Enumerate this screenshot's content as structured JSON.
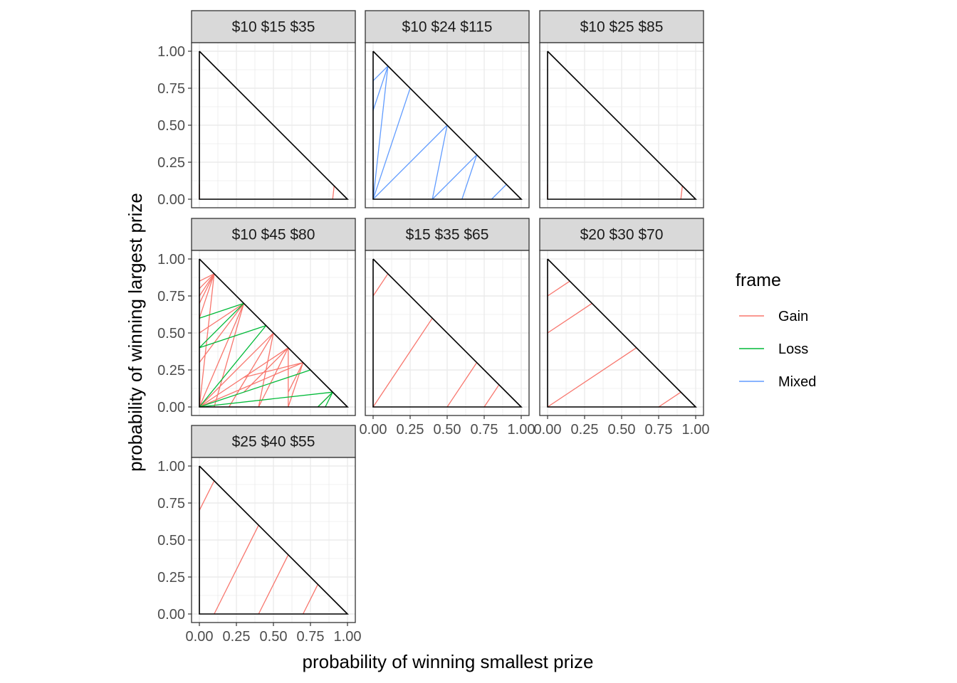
{
  "chart_data": {
    "type": "line",
    "xlabel": "probability of winning smallest prize",
    "ylabel": "probability of winning largest prize",
    "xlim": [
      0,
      1
    ],
    "ylim": [
      0,
      1
    ],
    "x_ticks": [
      "0.00",
      "0.25",
      "0.50",
      "0.75",
      "1.00"
    ],
    "y_ticks": [
      "0.00",
      "0.25",
      "0.50",
      "0.75",
      "1.00"
    ],
    "grid": true,
    "legend": {
      "title": "frame",
      "position": "right",
      "entries": [
        {
          "name": "Gain",
          "color": "#F8766D"
        },
        {
          "name": "Loss",
          "color": "#00BA38"
        },
        {
          "name": "Mixed",
          "color": "#619CFF"
        }
      ]
    },
    "triangle": [
      [
        0,
        1
      ],
      [
        0,
        0
      ],
      [
        1,
        0
      ],
      [
        0,
        1
      ]
    ],
    "panels": [
      {
        "label": "$10 $15 $35",
        "segments": [
          {
            "frame": "Gain",
            "x1": 0.0,
            "y1": 0.0,
            "x2": 0.0,
            "y2": 0.1
          },
          {
            "frame": "Gain",
            "x1": 0.9,
            "y1": 0.0,
            "x2": 0.91,
            "y2": 0.09
          }
        ]
      },
      {
        "label": "$10 $24 $115",
        "segments": [
          {
            "frame": "Mixed",
            "x1": 0.0,
            "y1": 0.6,
            "x2": 0.0,
            "y2": 0.8
          },
          {
            "frame": "Mixed",
            "x1": 0.0,
            "y1": 0.6,
            "x2": 0.1,
            "y2": 0.9
          },
          {
            "frame": "Mixed",
            "x1": 0.0,
            "y1": 0.8,
            "x2": 0.1,
            "y2": 0.9
          },
          {
            "frame": "Mixed",
            "x1": 0.0,
            "y1": 0.0,
            "x2": 0.1,
            "y2": 0.9
          },
          {
            "frame": "Mixed",
            "x1": 0.0,
            "y1": 0.0,
            "x2": 0.25,
            "y2": 0.75
          },
          {
            "frame": "Mixed",
            "x1": 0.0,
            "y1": 0.0,
            "x2": 0.5,
            "y2": 0.5
          },
          {
            "frame": "Mixed",
            "x1": 0.4,
            "y1": 0.0,
            "x2": 0.5,
            "y2": 0.5
          },
          {
            "frame": "Mixed",
            "x1": 0.4,
            "y1": 0.0,
            "x2": 0.7,
            "y2": 0.3
          },
          {
            "frame": "Mixed",
            "x1": 0.6,
            "y1": 0.0,
            "x2": 0.7,
            "y2": 0.3
          },
          {
            "frame": "Mixed",
            "x1": 0.8,
            "y1": 0.0,
            "x2": 0.9,
            "y2": 0.1
          }
        ]
      },
      {
        "label": "$10 $25 $85",
        "segments": [
          {
            "frame": "Gain",
            "x1": 0.0,
            "y1": 0.0,
            "x2": 0.0,
            "y2": 0.1
          },
          {
            "frame": "Gain",
            "x1": 0.9,
            "y1": 0.0,
            "x2": 0.91,
            "y2": 0.09
          }
        ]
      },
      {
        "label": "$10 $45 $80",
        "segments": [
          {
            "frame": "Gain",
            "x1": 0.0,
            "y1": 0.7,
            "x2": 0.1,
            "y2": 0.9
          },
          {
            "frame": "Gain",
            "x1": 0.0,
            "y1": 0.75,
            "x2": 0.1,
            "y2": 0.9
          },
          {
            "frame": "Gain",
            "x1": 0.0,
            "y1": 0.8,
            "x2": 0.1,
            "y2": 0.9
          },
          {
            "frame": "Gain",
            "x1": 0.0,
            "y1": 0.85,
            "x2": 0.1,
            "y2": 0.9
          },
          {
            "frame": "Gain",
            "x1": 0.0,
            "y1": 0.6,
            "x2": 0.1,
            "y2": 0.9
          },
          {
            "frame": "Gain",
            "x1": 0.0,
            "y1": 0.5,
            "x2": 0.3,
            "y2": 0.7
          },
          {
            "frame": "Gain",
            "x1": 0.0,
            "y1": 0.3,
            "x2": 0.3,
            "y2": 0.7
          },
          {
            "frame": "Gain",
            "x1": 0.0,
            "y1": 0.0,
            "x2": 0.1,
            "y2": 0.9
          },
          {
            "frame": "Gain",
            "x1": 0.0,
            "y1": 0.0,
            "x2": 0.3,
            "y2": 0.7
          },
          {
            "frame": "Gain",
            "x1": 0.0,
            "y1": 0.0,
            "x2": 0.5,
            "y2": 0.5
          },
          {
            "frame": "Gain",
            "x1": 0.0,
            "y1": 0.0,
            "x2": 0.6,
            "y2": 0.4
          },
          {
            "frame": "Gain",
            "x1": 0.0,
            "y1": 0.0,
            "x2": 0.7,
            "y2": 0.3
          },
          {
            "frame": "Gain",
            "x1": 0.1,
            "y1": 0.0,
            "x2": 0.3,
            "y2": 0.7
          },
          {
            "frame": "Gain",
            "x1": 0.2,
            "y1": 0.0,
            "x2": 0.5,
            "y2": 0.5
          },
          {
            "frame": "Gain",
            "x1": 0.4,
            "y1": 0.0,
            "x2": 0.6,
            "y2": 0.4
          },
          {
            "frame": "Gain",
            "x1": 0.4,
            "y1": 0.0,
            "x2": 0.5,
            "y2": 0.5
          },
          {
            "frame": "Gain",
            "x1": 0.6,
            "y1": 0.0,
            "x2": 0.7,
            "y2": 0.3
          },
          {
            "frame": "Gain",
            "x1": 0.6,
            "y1": 0.0,
            "x2": 0.6,
            "y2": 0.4
          },
          {
            "frame": "Gain",
            "x1": 0.8,
            "y1": 0.0,
            "x2": 0.9,
            "y2": 0.1
          },
          {
            "frame": "Gain",
            "x1": 0.3,
            "y1": 0.1,
            "x2": 0.6,
            "y2": 0.4
          },
          {
            "frame": "Gain",
            "x1": 0.3,
            "y1": 0.2,
            "x2": 0.7,
            "y2": 0.3
          },
          {
            "frame": "Gain",
            "x1": 0.6,
            "y1": 0.1,
            "x2": 0.7,
            "y2": 0.3
          },
          {
            "frame": "Loss",
            "x1": 0.0,
            "y1": 0.6,
            "x2": 0.3,
            "y2": 0.7
          },
          {
            "frame": "Loss",
            "x1": 0.0,
            "y1": 0.4,
            "x2": 0.3,
            "y2": 0.7
          },
          {
            "frame": "Loss",
            "x1": 0.0,
            "y1": 0.4,
            "x2": 0.45,
            "y2": 0.55
          },
          {
            "frame": "Loss",
            "x1": 0.0,
            "y1": 0.0,
            "x2": 0.45,
            "y2": 0.55
          },
          {
            "frame": "Loss",
            "x1": 0.0,
            "y1": 0.0,
            "x2": 0.75,
            "y2": 0.25
          },
          {
            "frame": "Loss",
            "x1": 0.0,
            "y1": 0.0,
            "x2": 0.9,
            "y2": 0.1
          },
          {
            "frame": "Loss",
            "x1": 0.8,
            "y1": 0.0,
            "x2": 0.9,
            "y2": 0.1
          },
          {
            "frame": "Loss",
            "x1": 0.85,
            "y1": 0.0,
            "x2": 0.9,
            "y2": 0.1
          }
        ]
      },
      {
        "label": "$15 $35 $65",
        "segments": [
          {
            "frame": "Gain",
            "x1": 0.0,
            "y1": 0.75,
            "x2": 0.1,
            "y2": 0.9
          },
          {
            "frame": "Gain",
            "x1": 0.0,
            "y1": 0.0,
            "x2": 0.4,
            "y2": 0.6
          },
          {
            "frame": "Gain",
            "x1": 0.5,
            "y1": 0.0,
            "x2": 0.7,
            "y2": 0.3
          },
          {
            "frame": "Gain",
            "x1": 0.75,
            "y1": 0.0,
            "x2": 0.85,
            "y2": 0.15
          }
        ]
      },
      {
        "label": "$20 $30 $70",
        "segments": [
          {
            "frame": "Gain",
            "x1": 0.0,
            "y1": 0.75,
            "x2": 0.15,
            "y2": 0.85
          },
          {
            "frame": "Gain",
            "x1": 0.0,
            "y1": 0.5,
            "x2": 0.3,
            "y2": 0.7
          },
          {
            "frame": "Gain",
            "x1": 0.0,
            "y1": 0.0,
            "x2": 0.6,
            "y2": 0.4
          },
          {
            "frame": "Gain",
            "x1": 0.75,
            "y1": 0.0,
            "x2": 0.9,
            "y2": 0.1
          }
        ]
      },
      {
        "label": "$25 $40 $55",
        "segments": [
          {
            "frame": "Gain",
            "x1": 0.0,
            "y1": 0.7,
            "x2": 0.1,
            "y2": 0.9
          },
          {
            "frame": "Gain",
            "x1": 0.1,
            "y1": 0.0,
            "x2": 0.4,
            "y2": 0.6
          },
          {
            "frame": "Gain",
            "x1": 0.4,
            "y1": 0.0,
            "x2": 0.6,
            "y2": 0.4
          },
          {
            "frame": "Gain",
            "x1": 0.7,
            "y1": 0.0,
            "x2": 0.8,
            "y2": 0.2
          }
        ]
      }
    ]
  }
}
